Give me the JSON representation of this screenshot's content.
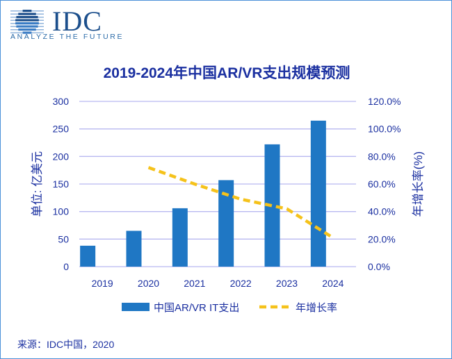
{
  "logo": {
    "name": "IDC",
    "tagline": "ANALYZE THE FUTURE"
  },
  "source": "来源：IDC中国，2020",
  "colors": {
    "bar": "#1f77c4",
    "line": "#f5c21b",
    "text": "#1a2fa0",
    "grid": "#b8b8f0"
  },
  "chart_data": {
    "type": "bar+line",
    "title": "2019-2024年中国AR/VR支出规模预测",
    "categories": [
      "2019",
      "2020",
      "2021",
      "2022",
      "2023",
      "2024"
    ],
    "ylabel_left": "单位: 亿美元",
    "ylabel_right": "年增长率(%)",
    "ylim_left": [
      0,
      300
    ],
    "ylim_right": [
      0,
      120
    ],
    "yticks_left": [
      "0",
      "50",
      "100",
      "150",
      "200",
      "250",
      "300"
    ],
    "yticks_right": [
      "0.0%",
      "20.0%",
      "40.0%",
      "60.0%",
      "80.0%",
      "100.0%",
      "120.0%"
    ],
    "grid": true,
    "legend_position": "bottom",
    "series": [
      {
        "name": "中国AR/VR IT支出",
        "type": "bar",
        "axis": "left",
        "values": [
          38,
          65,
          106,
          157,
          222,
          265
        ]
      },
      {
        "name": "年增长率",
        "type": "line",
        "style": "dashed",
        "axis": "right",
        "values": [
          null,
          72,
          60,
          49,
          42,
          21
        ]
      }
    ]
  }
}
